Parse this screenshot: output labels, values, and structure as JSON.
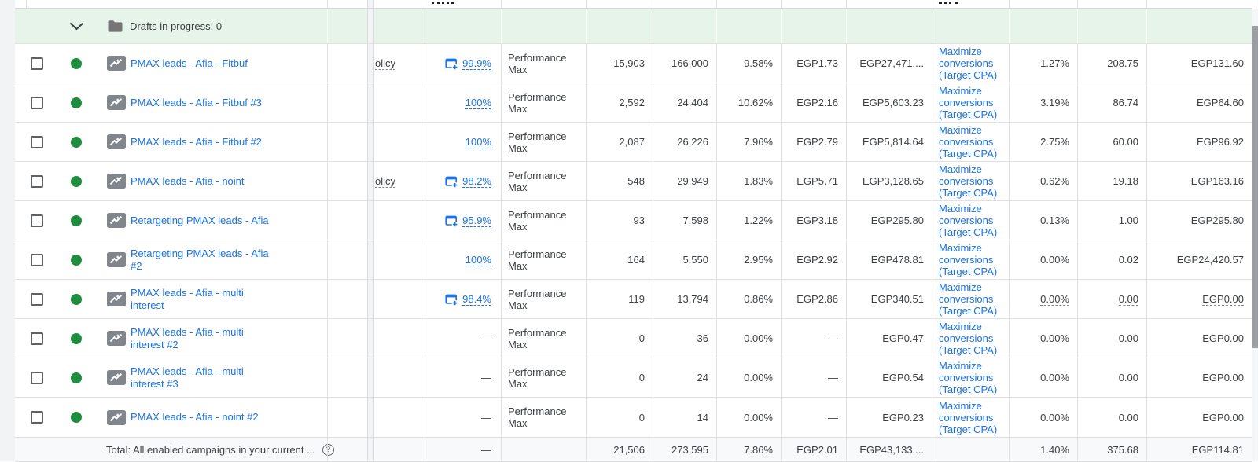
{
  "colors": {
    "accent_blue": "#1a73e8",
    "status_green": "#1e8e3e",
    "drafts_row_bg": "#e6f4ea",
    "row_border": "#e0e0e0",
    "gutter_bg": "#f1f3f4",
    "total_row_bg": "#f8f9fa",
    "scrollbar_thumb": "#9a9da1"
  },
  "drafts_row": {
    "label": "Drafts in progress: 0"
  },
  "rows": [
    {
      "name": "PMAX leads - Afia - Fitbuf",
      "policy": "olicy",
      "opt_score": "99.9%",
      "opt_icon": true,
      "type": "Performance Max",
      "clicks": "15,903",
      "impressions": "166,000",
      "ctr": "9.58%",
      "avg_cpc": "EGP1.73",
      "cost": "EGP27,471....",
      "bid_strategy": "Maximize conversions (Target CPA)",
      "conv_rate": "1.27%",
      "conversions": "208.75",
      "cost_per_conv": "EGP131.60",
      "metrics_underlined": false
    },
    {
      "name": "PMAX leads - Afia - Fitbuf #3",
      "policy": "",
      "opt_score": "100%",
      "opt_icon": false,
      "type": "Performance Max",
      "clicks": "2,592",
      "impressions": "24,404",
      "ctr": "10.62%",
      "avg_cpc": "EGP2.16",
      "cost": "EGP5,603.23",
      "bid_strategy": "Maximize conversions (Target CPA)",
      "conv_rate": "3.19%",
      "conversions": "86.74",
      "cost_per_conv": "EGP64.60",
      "metrics_underlined": false
    },
    {
      "name": "PMAX leads - Afia - Fitbuf #2",
      "policy": "",
      "opt_score": "100%",
      "opt_icon": false,
      "type": "Performance Max",
      "clicks": "2,087",
      "impressions": "26,226",
      "ctr": "7.96%",
      "avg_cpc": "EGP2.79",
      "cost": "EGP5,814.64",
      "bid_strategy": "Maximize conversions (Target CPA)",
      "conv_rate": "2.75%",
      "conversions": "60.00",
      "cost_per_conv": "EGP96.92",
      "metrics_underlined": false
    },
    {
      "name": "PMAX leads - Afia - noint",
      "policy": "olicy",
      "opt_score": "98.2%",
      "opt_icon": true,
      "type": "Performance Max",
      "clicks": "548",
      "impressions": "29,949",
      "ctr": "1.83%",
      "avg_cpc": "EGP5.71",
      "cost": "EGP3,128.65",
      "bid_strategy": "Maximize conversions (Target CPA)",
      "conv_rate": "0.62%",
      "conversions": "19.18",
      "cost_per_conv": "EGP163.16",
      "metrics_underlined": false
    },
    {
      "name": "Retargeting PMAX leads - Afia",
      "policy": "",
      "opt_score": "95.9%",
      "opt_icon": true,
      "type": "Performance Max",
      "clicks": "93",
      "impressions": "7,598",
      "ctr": "1.22%",
      "avg_cpc": "EGP3.18",
      "cost": "EGP295.80",
      "bid_strategy": "Maximize conversions (Target CPA)",
      "conv_rate": "0.13%",
      "conversions": "1.00",
      "cost_per_conv": "EGP295.80",
      "metrics_underlined": false
    },
    {
      "name": "Retargeting PMAX leads - Afia #2",
      "policy": "",
      "opt_score": "100%",
      "opt_icon": false,
      "type": "Performance Max",
      "clicks": "164",
      "impressions": "5,550",
      "ctr": "2.95%",
      "avg_cpc": "EGP2.92",
      "cost": "EGP478.81",
      "bid_strategy": "Maximize conversions (Target CPA)",
      "conv_rate": "0.00%",
      "conversions": "0.02",
      "cost_per_conv": "EGP24,420.57",
      "metrics_underlined": false
    },
    {
      "name": "PMAX leads - Afia - multi interest",
      "policy": "",
      "opt_score": "98.4%",
      "opt_icon": true,
      "type": "Performance Max",
      "clicks": "119",
      "impressions": "13,794",
      "ctr": "0.86%",
      "avg_cpc": "EGP2.86",
      "cost": "EGP340.51",
      "bid_strategy": "Maximize conversions (Target CPA)",
      "conv_rate": "0.00%",
      "conversions": "0.00",
      "cost_per_conv": "EGP0.00",
      "metrics_underlined": true
    },
    {
      "name": "PMAX leads - Afia - multi interest #2",
      "policy": "",
      "opt_score": "—",
      "opt_icon": false,
      "type": "Performance Max",
      "clicks": "0",
      "impressions": "36",
      "ctr": "0.00%",
      "avg_cpc": "—",
      "cost": "EGP0.47",
      "bid_strategy": "Maximize conversions (Target CPA)",
      "conv_rate": "0.00%",
      "conversions": "0.00",
      "cost_per_conv": "EGP0.00",
      "metrics_underlined": false
    },
    {
      "name": "PMAX leads - Afia - multi interest #3",
      "policy": "",
      "opt_score": "—",
      "opt_icon": false,
      "type": "Performance Max",
      "clicks": "0",
      "impressions": "24",
      "ctr": "0.00%",
      "avg_cpc": "—",
      "cost": "EGP0.54",
      "bid_strategy": "Maximize conversions (Target CPA)",
      "conv_rate": "0.00%",
      "conversions": "0.00",
      "cost_per_conv": "EGP0.00",
      "metrics_underlined": false
    },
    {
      "name": "PMAX leads - Afia - noint #2",
      "policy": "",
      "opt_score": "—",
      "opt_icon": false,
      "type": "Performance Max",
      "clicks": "0",
      "impressions": "14",
      "ctr": "0.00%",
      "avg_cpc": "—",
      "cost": "EGP0.23",
      "bid_strategy": "Maximize conversions (Target CPA)",
      "conv_rate": "0.00%",
      "conversions": "0.00",
      "cost_per_conv": "EGP0.00",
      "metrics_underlined": false
    }
  ],
  "total_row": {
    "label": "Total: All enabled campaigns in your current ...",
    "help_glyph": "?",
    "opt_score": "—",
    "clicks": "21,506",
    "impressions": "273,595",
    "ctr": "7.86%",
    "avg_cpc": "EGP2.01",
    "cost": "EGP43,133....",
    "conv_rate": "1.40%",
    "conversions": "375.68",
    "cost_per_conv": "EGP114.81"
  }
}
